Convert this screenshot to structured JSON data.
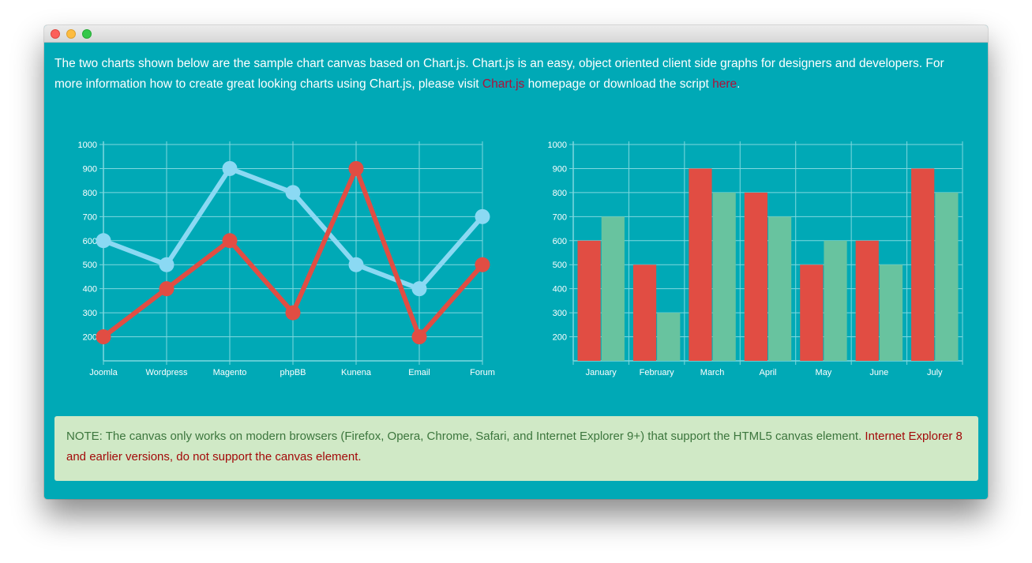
{
  "window": {
    "controls": [
      "close",
      "minimize",
      "zoom"
    ]
  },
  "intro": {
    "text1": "The two charts shown below are the sample chart canvas based on Chart.js. Chart.js is an easy, object oriented client side graphs for designers and developers. For more information how to create great looking charts using Chart.js, please visit ",
    "link1": "Chart.js",
    "text2": " homepage or download the script ",
    "link2": "here",
    "text3": "."
  },
  "note": {
    "text": "NOTE: The canvas only works on modern browsers (Firefox, Opera, Chrome, Safari, and Internet Explorer 9+) that support the HTML5 canvas element. ",
    "warning": "Internet Explorer 8 and earlier versions, do not support the canvas element."
  },
  "colors": {
    "background": "#00a9b6",
    "grid": "#7fd8df",
    "series_red": "#e14d43",
    "series_light_blue": "#8bd9f3",
    "series_green": "#68c39f",
    "note_bg": "#d0e9c6",
    "note_text": "#3c763d",
    "warning_text": "#a30a0a"
  },
  "chart_data": [
    {
      "type": "line",
      "categories": [
        "Joomla",
        "Wordpress",
        "Magento",
        "phpBB",
        "Kunena",
        "Email",
        "Forum"
      ],
      "series": [
        {
          "color": "#8bd9f3",
          "values": [
            600,
            500,
            900,
            800,
            500,
            400,
            700
          ]
        },
        {
          "color": "#e14d43",
          "values": [
            200,
            400,
            600,
            300,
            900,
            200,
            500
          ]
        }
      ],
      "yticks": [
        200,
        300,
        400,
        500,
        600,
        700,
        800,
        900,
        1000
      ],
      "ylim": [
        100,
        1000
      ],
      "grid": true
    },
    {
      "type": "bar",
      "categories": [
        "January",
        "February",
        "March",
        "April",
        "May",
        "June",
        "July"
      ],
      "series": [
        {
          "color": "#e14d43",
          "values": [
            600,
            500,
            900,
            800,
            500,
            600,
            900
          ]
        },
        {
          "color": "#68c39f",
          "values": [
            700,
            300,
            800,
            700,
            600,
            500,
            800
          ]
        }
      ],
      "yticks": [
        200,
        300,
        400,
        500,
        600,
        700,
        800,
        900,
        1000
      ],
      "ylim": [
        100,
        1000
      ],
      "grid": true
    }
  ]
}
